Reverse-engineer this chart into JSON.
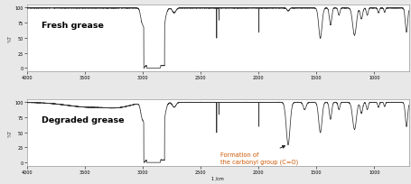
{
  "background_color": "#e8e8e8",
  "panel_bg": "#ffffff",
  "line_color": "#333333",
  "xmin": 4000,
  "xmax": 700,
  "ymin": 0,
  "ymax": 100,
  "label_fresh": "Fresh grease",
  "label_degraded": "Degraded grease",
  "annotation_text": "Formation of\nthe carbonyl group (C=O)",
  "xlabel": "1 /cm",
  "yticks": [
    0,
    25,
    50,
    75,
    100
  ],
  "xticks": [
    4000,
    3500,
    3000,
    2500,
    2000,
    1500,
    1000
  ],
  "label_color_fresh": "#000000",
  "label_color_degraded": "#000000",
  "annotation_color": "#cc5500",
  "border_color": "#999999"
}
